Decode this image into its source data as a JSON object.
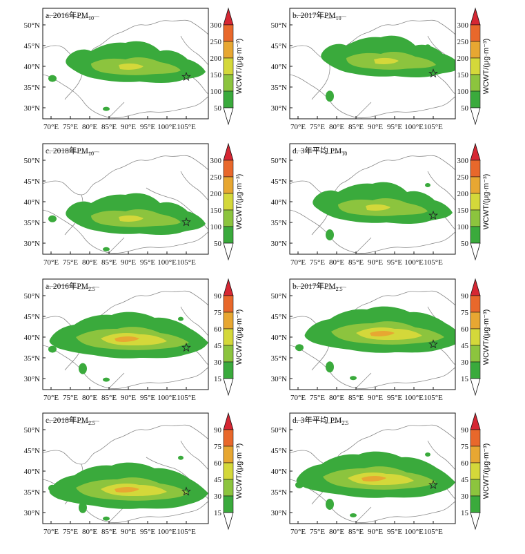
{
  "panels": [
    {
      "title": "a. 2016年PM",
      "sub": "10",
      "pollutant": "pm10",
      "variant": 0
    },
    {
      "title": "b. 2017年PM",
      "sub": "10",
      "pollutant": "pm10",
      "variant": 1
    },
    {
      "title": "c. 2018年PM",
      "sub": "10",
      "pollutant": "pm10",
      "variant": 2
    },
    {
      "title": "d. 3年平均 PM",
      "sub": "10",
      "pollutant": "pm10",
      "variant": 3
    },
    {
      "title": "a. 2016年PM",
      "sub": "2.5",
      "pollutant": "pm25",
      "variant": 0
    },
    {
      "title": "b. 2017年PM",
      "sub": "2.5",
      "pollutant": "pm25",
      "variant": 1
    },
    {
      "title": "c. 2018年PM",
      "sub": "2.5",
      "pollutant": "pm25",
      "variant": 2
    },
    {
      "title": "d. 3年平均 PM",
      "sub": "2.5",
      "pollutant": "pm25",
      "variant": 3
    }
  ],
  "lat_ticks": [
    "50°N",
    "45°N",
    "40°N",
    "35°N",
    "30°N"
  ],
  "lon_ticks": [
    "70°E",
    "75°E",
    "80°E",
    "85°E",
    "90°E",
    "95°E",
    "100°E",
    "105°E"
  ],
  "colorbars": {
    "pm10": {
      "label": "WCWT/(μg·m⁻³)",
      "ticks": [
        "50",
        "100",
        "150",
        "200",
        "250",
        "300"
      ]
    },
    "pm25": {
      "label": "WCWT/(μg·m⁻³)",
      "ticks": [
        "15",
        "30",
        "45",
        "60",
        "75",
        "90"
      ]
    }
  },
  "colors": {
    "level_1": "#3aaa3c",
    "level_2": "#8cc43e",
    "level_3": "#d4d83a",
    "level_4": "#e7a732",
    "level_5": "#e8682b",
    "level_6": "#d62733",
    "border": "#888888"
  },
  "map_elements": {
    "station_marker": "star-icon"
  }
}
